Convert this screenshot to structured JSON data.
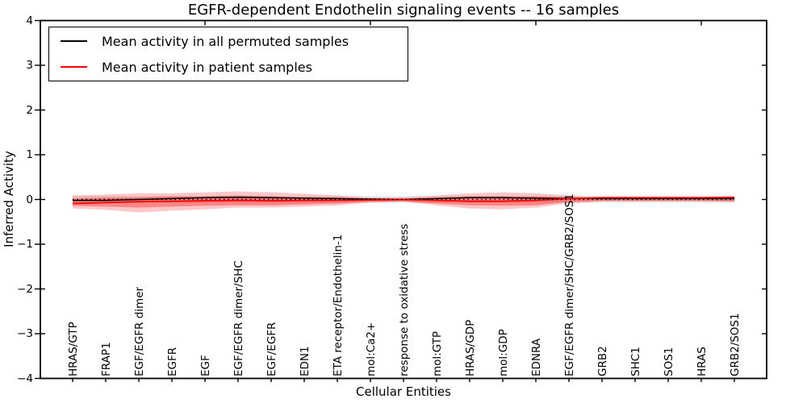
{
  "chart_data": {
    "type": "line",
    "title": "EGFR-dependent Endothelin signaling events -- 16 samples",
    "xlabel": "Cellular Entities",
    "ylabel": "Inferred Activity",
    "ylim": [
      -4,
      4
    ],
    "yticks": [
      4,
      3,
      2,
      1,
      0,
      -1,
      -2,
      -3,
      -4
    ],
    "yticklabels": [
      "4",
      "3",
      "2",
      "1",
      "0",
      "−1",
      "−2",
      "−3",
      "−4"
    ],
    "grid": false,
    "zero_line": {
      "style": "dotted",
      "color": "#000000",
      "y": 0
    },
    "categories": [
      "HRAS/GTP",
      "FRAP1",
      "EGF/EGFR dimer",
      "EGFR",
      "EGF",
      "EGF/EGFR dimer/SHC",
      "EGF/EGFR",
      "EDN1",
      "ETA receptor/Endothelin-1",
      "mol:Ca2+",
      "response to oxidative stress",
      "mol:GTP",
      "HRAS/GDP",
      "mol:GDP",
      "EDNRA",
      "EGF/EGFR dimer/SHC/GRB2/SOS1",
      "GRB2",
      "SHC1",
      "SOS1",
      "HRAS",
      "GRB2/SOS1"
    ],
    "series": [
      {
        "name": "Mean activity in all permuted samples",
        "color": "#000000",
        "values": [
          -0.02,
          -0.02,
          0,
          0.02,
          0.04,
          0.05,
          0.04,
          0.03,
          0.02,
          0.01,
          0,
          0.02,
          0.04,
          0.04,
          0.03,
          0.02,
          0.02,
          0.02,
          0.02,
          0.02,
          0.02
        ]
      },
      {
        "name": "Mean activity in patient samples",
        "color": "#ff0000",
        "values": [
          -0.09,
          -0.07,
          -0.05,
          -0.04,
          -0.03,
          -0.02,
          -0.03,
          -0.02,
          -0.02,
          -0.01,
          0,
          -0.02,
          -0.04,
          -0.04,
          -0.02,
          0.02,
          0.04,
          0.04,
          0.04,
          0.04,
          0.05
        ]
      }
    ],
    "bands": [
      {
        "name": "permuted-samples-range",
        "color": "#c8c8c8",
        "opacity": 0.45,
        "low": [
          -0.075,
          -0.075,
          -0.075,
          -0.075,
          -0.075,
          -0.075,
          -0.075,
          -0.075,
          -0.075,
          -0.075,
          -0.075,
          -0.075,
          -0.075,
          -0.075,
          -0.075,
          -0.075,
          -0.075,
          -0.075,
          -0.075,
          -0.075,
          -0.075
        ],
        "high": [
          0.075,
          0.075,
          0.075,
          0.075,
          0.075,
          0.075,
          0.075,
          0.075,
          0.075,
          0.075,
          0.075,
          0.075,
          0.075,
          0.075,
          0.075,
          0.075,
          0.075,
          0.075,
          0.075,
          0.075,
          0.075
        ]
      },
      {
        "name": "patient-samples-outer-band",
        "color": "#ff0000",
        "opacity": 0.22,
        "low": [
          -0.2,
          -0.23,
          -0.29,
          -0.25,
          -0.22,
          -0.18,
          -0.18,
          -0.16,
          -0.13,
          -0.07,
          -0.05,
          -0.13,
          -0.2,
          -0.22,
          -0.18,
          -0.09,
          -0.04,
          -0.04,
          -0.04,
          -0.04,
          -0.05
        ],
        "high": [
          0.09,
          0.11,
          0.14,
          0.14,
          0.16,
          0.18,
          0.16,
          0.13,
          0.09,
          0.04,
          0.04,
          0.09,
          0.14,
          0.16,
          0.14,
          0.09,
          0.05,
          0.05,
          0.05,
          0.05,
          0.07
        ]
      },
      {
        "name": "patient-samples-inner-band",
        "color": "#ff0000",
        "opacity": 0.32,
        "low": [
          -0.14,
          -0.16,
          -0.18,
          -0.16,
          -0.14,
          -0.13,
          -0.13,
          -0.11,
          -0.09,
          -0.05,
          -0.04,
          -0.09,
          -0.13,
          -0.14,
          -0.13,
          -0.05,
          -0.03,
          -0.03,
          -0.03,
          -0.03,
          -0.04
        ],
        "high": [
          0.02,
          0.04,
          0.05,
          0.07,
          0.07,
          0.09,
          0.07,
          0.05,
          0.04,
          0.02,
          0.02,
          0.04,
          0.07,
          0.07,
          0.07,
          0.05,
          0.04,
          0.04,
          0.04,
          0.04,
          0.05
        ]
      }
    ],
    "legend": {
      "position": "upper left",
      "items": [
        {
          "label": "Mean activity in all permuted samples",
          "color": "#000000"
        },
        {
          "label": "Mean activity in patient samples",
          "color": "#ff0000"
        }
      ]
    }
  }
}
